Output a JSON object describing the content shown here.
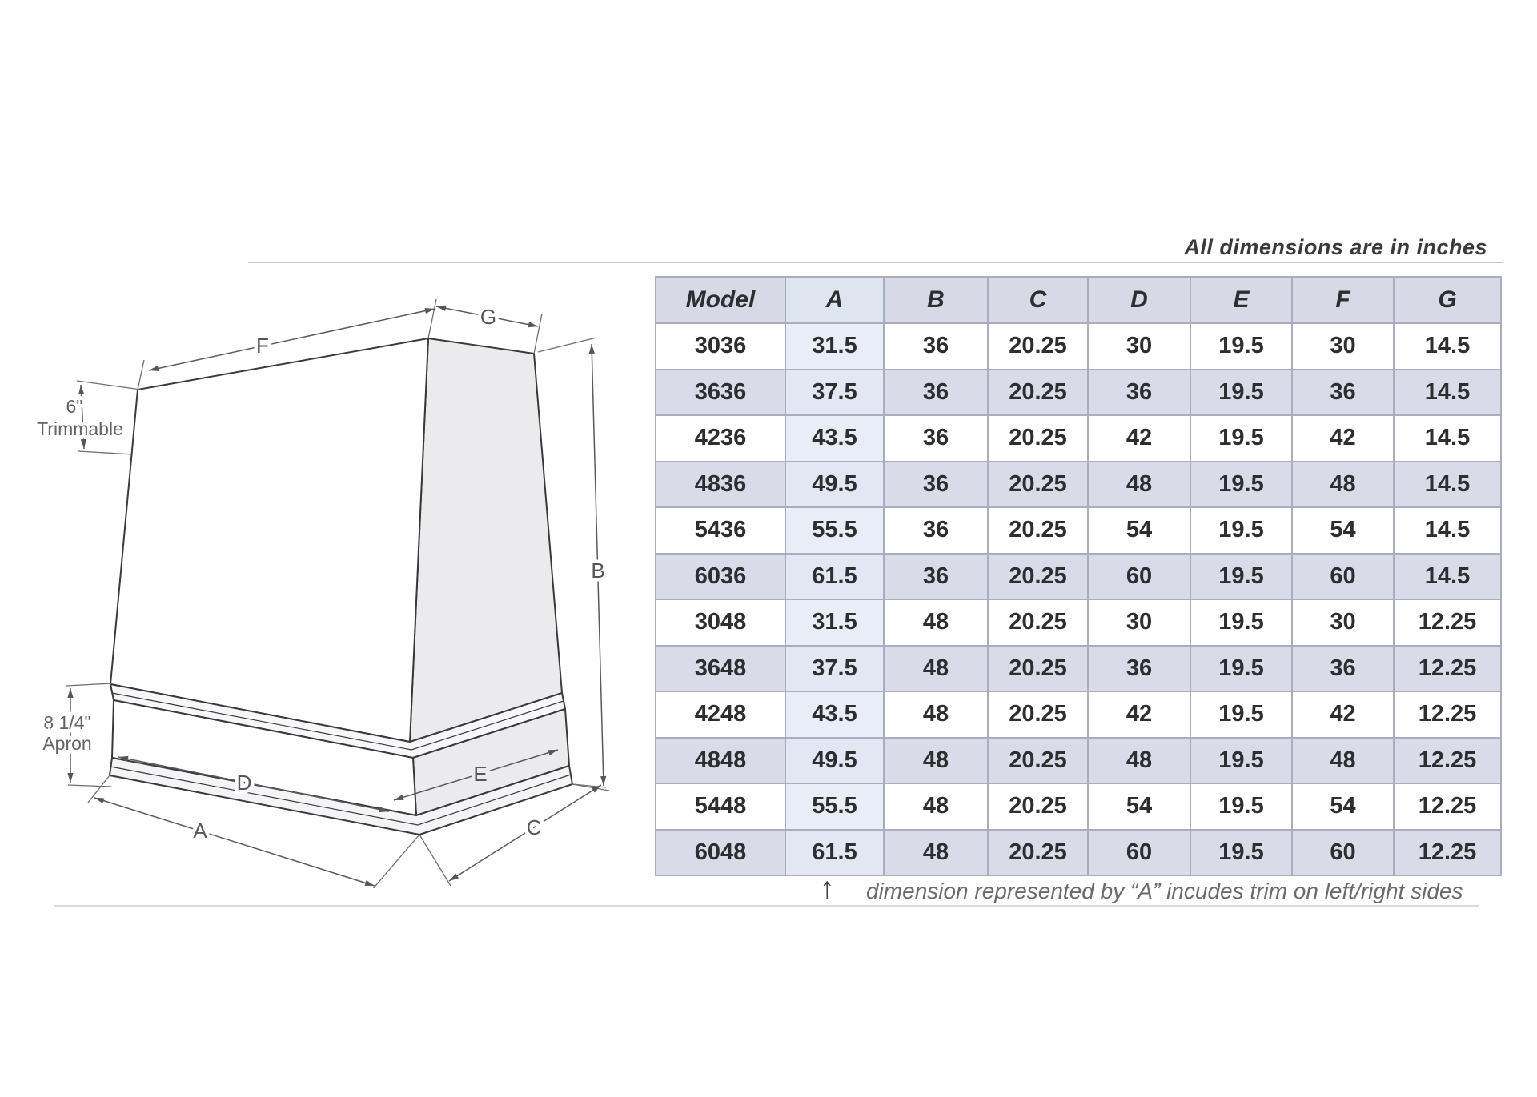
{
  "header_note": "All dimensions are in inches",
  "table": {
    "columns": [
      "Model",
      "A",
      "B",
      "C",
      "D",
      "E",
      "F",
      "G"
    ],
    "rows": [
      [
        "3036",
        "31.5",
        "36",
        "20.25",
        "30",
        "19.5",
        "30",
        "14.5"
      ],
      [
        "3636",
        "37.5",
        "36",
        "20.25",
        "36",
        "19.5",
        "36",
        "14.5"
      ],
      [
        "4236",
        "43.5",
        "36",
        "20.25",
        "42",
        "19.5",
        "42",
        "14.5"
      ],
      [
        "4836",
        "49.5",
        "36",
        "20.25",
        "48",
        "19.5",
        "48",
        "14.5"
      ],
      [
        "5436",
        "55.5",
        "36",
        "20.25",
        "54",
        "19.5",
        "54",
        "14.5"
      ],
      [
        "6036",
        "61.5",
        "36",
        "20.25",
        "60",
        "19.5",
        "60",
        "14.5"
      ],
      [
        "3048",
        "31.5",
        "48",
        "20.25",
        "30",
        "19.5",
        "30",
        "12.25"
      ],
      [
        "3648",
        "37.5",
        "48",
        "20.25",
        "36",
        "19.5",
        "36",
        "12.25"
      ],
      [
        "4248",
        "43.5",
        "48",
        "20.25",
        "42",
        "19.5",
        "42",
        "12.25"
      ],
      [
        "4848",
        "49.5",
        "48",
        "20.25",
        "48",
        "19.5",
        "48",
        "12.25"
      ],
      [
        "5448",
        "55.5",
        "48",
        "20.25",
        "54",
        "19.5",
        "54",
        "12.25"
      ],
      [
        "6048",
        "61.5",
        "48",
        "20.25",
        "60",
        "19.5",
        "60",
        "12.25"
      ]
    ]
  },
  "footnote": {
    "arrow": "↑",
    "text": "dimension represented by “A” incudes trim on left/right sides"
  },
  "diagram": {
    "labels": {
      "f": "F",
      "g": "G",
      "b": "B",
      "a": "A",
      "c": "C",
      "d": "D",
      "e": "E",
      "trim_value": "6\"",
      "trim_label": "Trimmable",
      "apron_value": "8 1/4\"",
      "apron_label": "Apron"
    }
  },
  "colors": {
    "header_bg": "#d8d9e7",
    "header_a_bg": "#dfe4f1",
    "row_alt_bg": "#d9dbe9",
    "col_a_on_white": "#e9edf7",
    "col_a_on_alt": "#e2e7f3",
    "grid_border": "#acacc0",
    "shaded_face": "#ebebee"
  }
}
